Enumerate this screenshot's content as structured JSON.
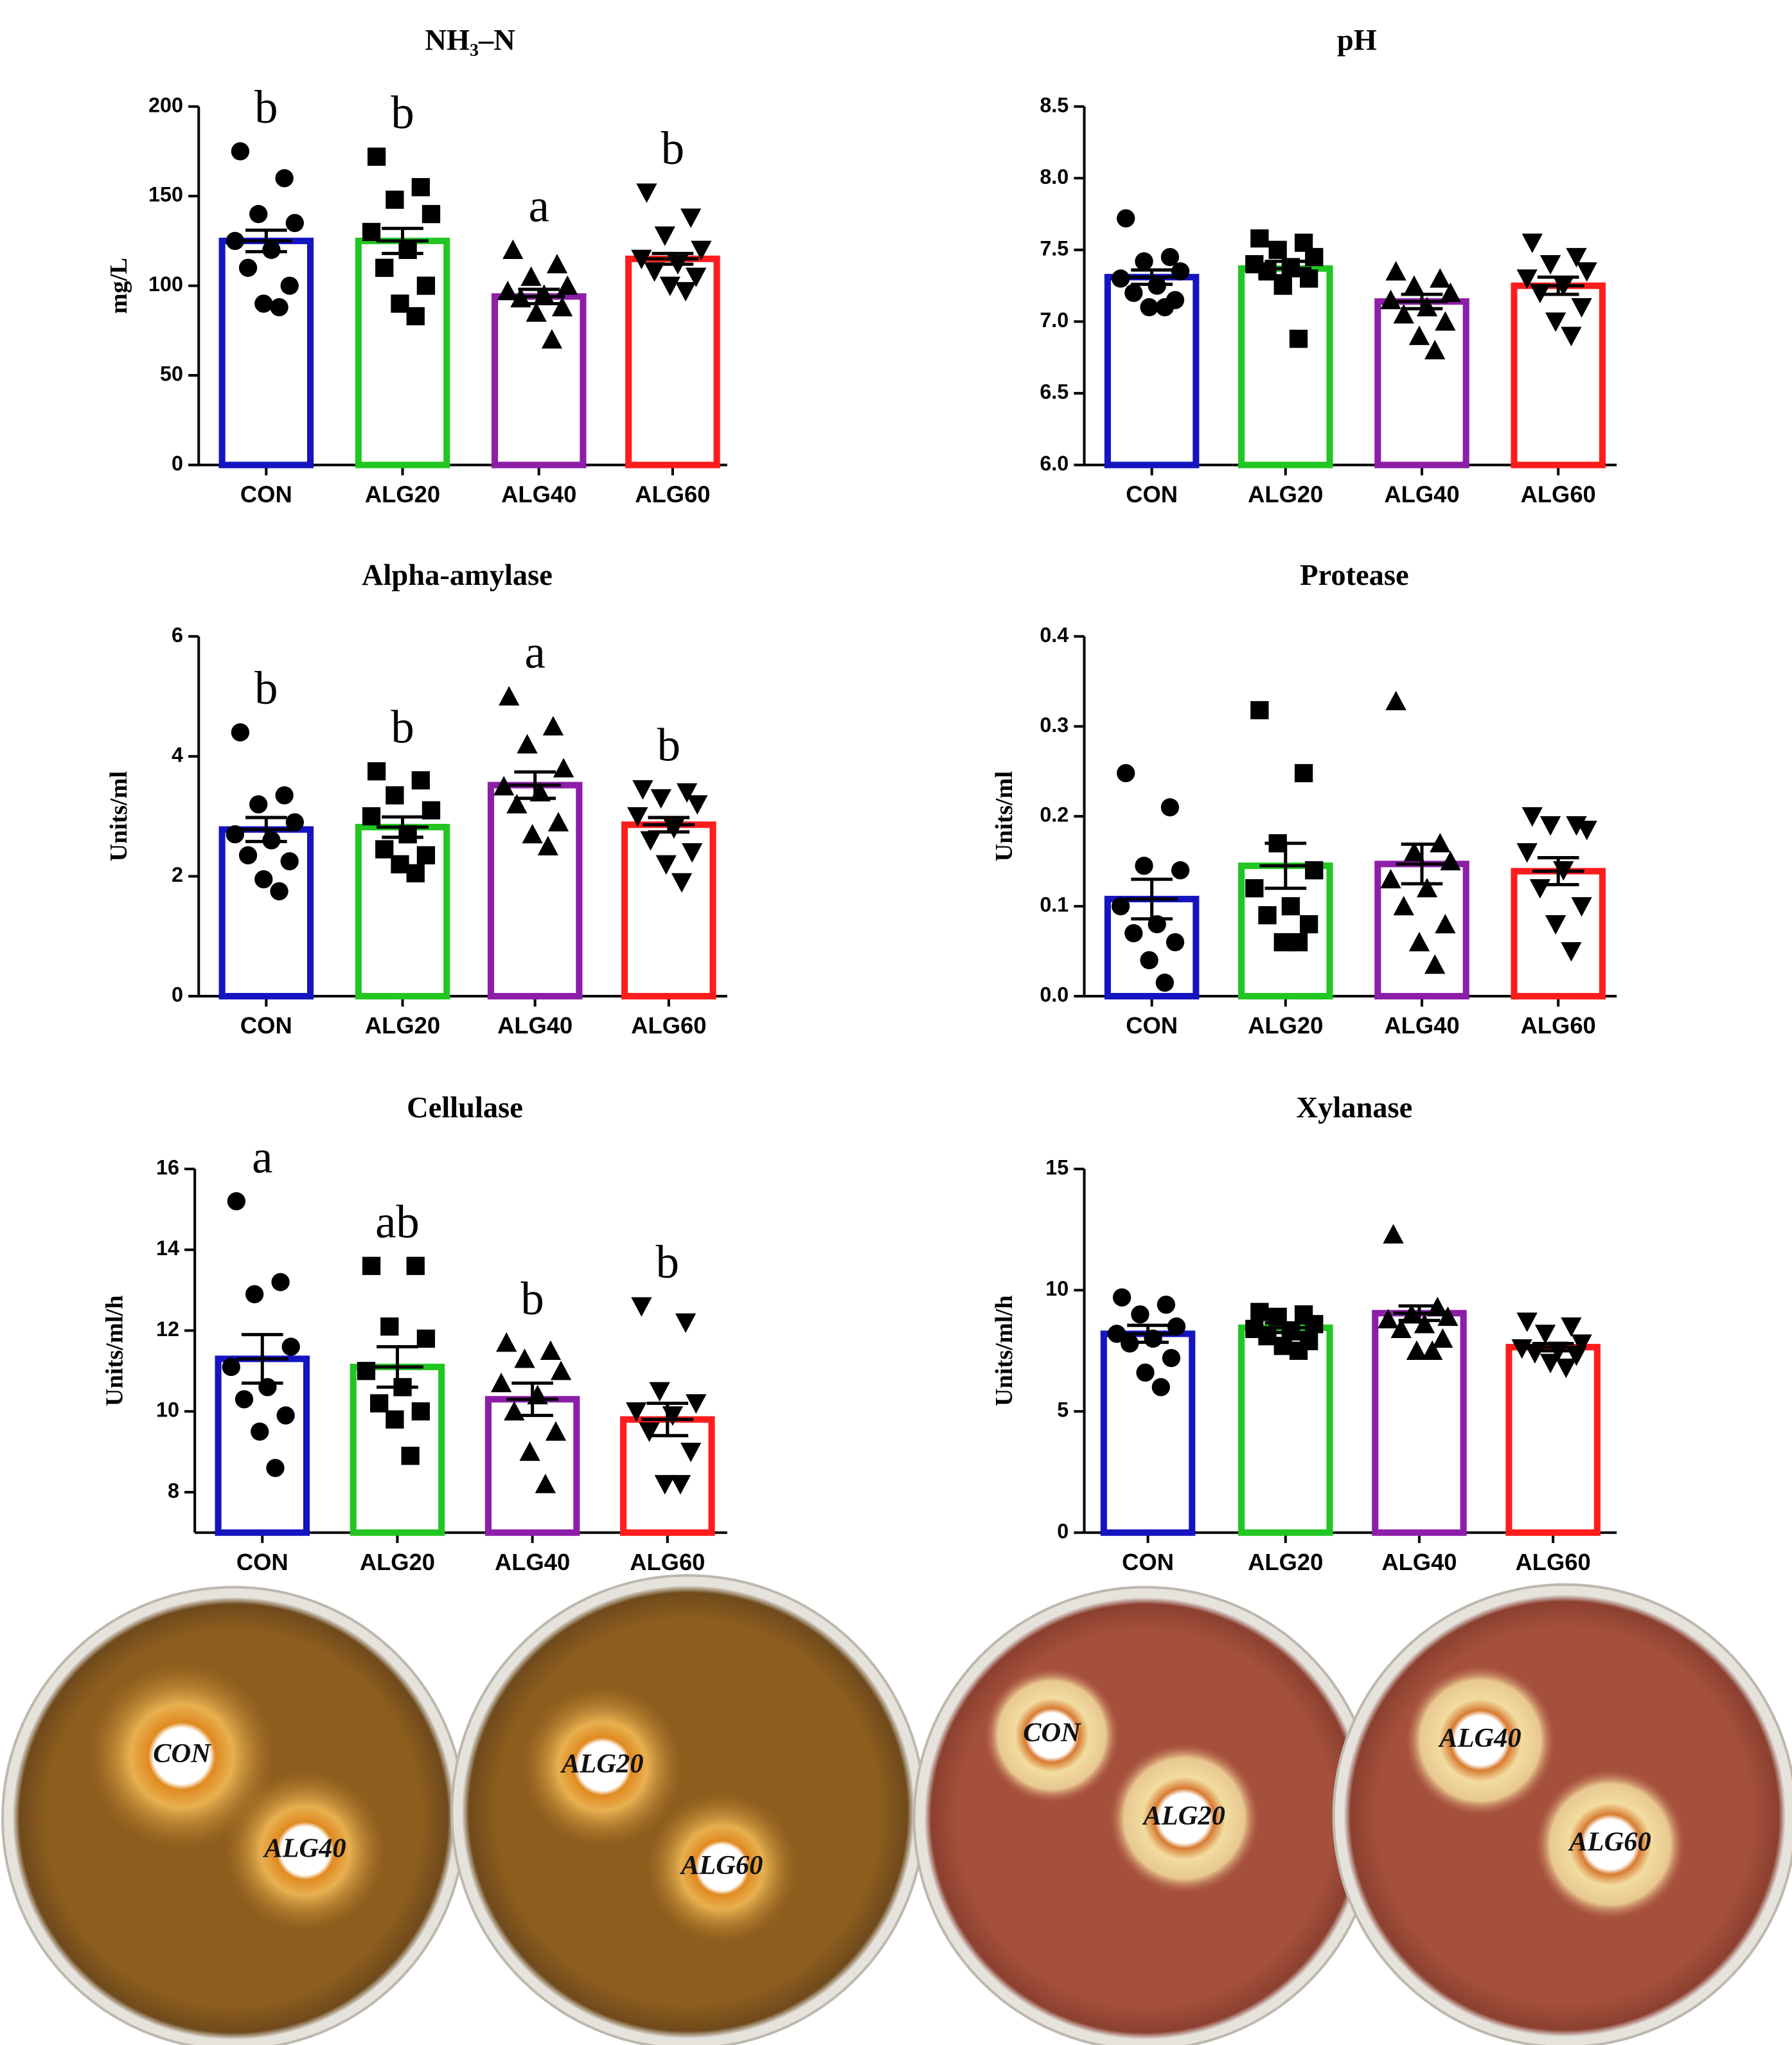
{
  "chart_data": [
    {
      "type": "bar",
      "title": "NH₃–N",
      "ylabel": "mg/L",
      "categories": [
        "CON",
        "ALG20",
        "ALG40",
        "ALG60"
      ],
      "values": [
        125,
        125,
        94,
        115
      ],
      "errors": [
        6,
        7,
        4,
        3
      ],
      "letters": [
        "b",
        "b",
        "a",
        "b"
      ],
      "points": [
        [
          175,
          160,
          140,
          135,
          125,
          120,
          110,
          100,
          90,
          88
        ],
        [
          172,
          155,
          148,
          140,
          130,
          120,
          110,
          100,
          90,
          83
        ],
        [
          120,
          112,
          105,
          100,
          97,
          95,
          93,
          88,
          85,
          70
        ],
        [
          152,
          138,
          128,
          120,
          115,
          112,
          108,
          105,
          100,
          97
        ]
      ],
      "ylim": [
        0,
        200
      ],
      "yticks": [
        0,
        50,
        100,
        150,
        200
      ],
      "colors": [
        "#1414c0",
        "#22c622",
        "#8c1ea8",
        "#ff1c1c"
      ],
      "markers": [
        "circle",
        "square",
        "triangle-up",
        "triangle-down"
      ]
    },
    {
      "type": "bar",
      "title": "pH",
      "categories": [
        "CON",
        "ALG20",
        "ALG40",
        "ALG60"
      ],
      "values": [
        7.31,
        7.37,
        7.14,
        7.25
      ],
      "errors": [
        0.05,
        0.05,
        0.05,
        0.06
      ],
      "points": [
        [
          7.72,
          7.45,
          7.42,
          7.35,
          7.3,
          7.25,
          7.2,
          7.15,
          7.1,
          7.1
        ],
        [
          7.58,
          7.55,
          7.5,
          7.45,
          7.4,
          7.38,
          7.35,
          7.3,
          7.25,
          6.88
        ],
        [
          7.35,
          7.3,
          7.25,
          7.2,
          7.15,
          7.1,
          7.05,
          7.0,
          6.9,
          6.8
        ],
        [
          7.55,
          7.45,
          7.4,
          7.35,
          7.3,
          7.25,
          7.2,
          7.1,
          7.0,
          6.9
        ]
      ],
      "ylim": [
        6,
        8.5
      ],
      "yticks": [
        {
          "value": 6,
          "label": "6.0"
        },
        6.5,
        {
          "value": 7,
          "label": "7.0"
        },
        7.5,
        {
          "value": 8,
          "label": "8.0"
        },
        8.5
      ],
      "colors": [
        "#1414c0",
        "#22c622",
        "#8c1ea8",
        "#ff1c1c"
      ],
      "markers": [
        "circle",
        "square",
        "triangle-up",
        "triangle-down"
      ]
    },
    {
      "type": "bar",
      "title": "Alpha-amylase",
      "ylabel": "Units/ml",
      "categories": [
        "CON",
        "ALG20",
        "ALG40",
        "ALG60"
      ],
      "values": [
        2.78,
        2.82,
        3.52,
        2.86
      ],
      "errors": [
        0.2,
        0.17,
        0.22,
        0.12
      ],
      "letters": [
        "b",
        "b",
        "a",
        "b"
      ],
      "points": [
        [
          4.4,
          3.35,
          3.2,
          2.9,
          2.7,
          2.6,
          2.35,
          2.25,
          1.95,
          1.75
        ],
        [
          3.75,
          3.6,
          3.35,
          3.1,
          3.0,
          2.7,
          2.45,
          2.35,
          2.2,
          2.05
        ],
        [
          5.0,
          4.5,
          4.2,
          3.8,
          3.5,
          3.4,
          3.2,
          2.9,
          2.7,
          2.5
        ],
        [
          3.45,
          3.4,
          3.3,
          3.2,
          3.0,
          2.8,
          2.6,
          2.4,
          2.2,
          1.9
        ]
      ],
      "ylim": [
        0,
        6
      ],
      "yticks": [
        0,
        2,
        4,
        6
      ],
      "colors": [
        "#1414c0",
        "#22c622",
        "#8c1ea8",
        "#ff1c1c"
      ],
      "markers": [
        "circle",
        "square",
        "triangle-up",
        "triangle-down"
      ]
    },
    {
      "type": "bar",
      "title": "Protease",
      "ylabel": "Units/ml",
      "categories": [
        "CON",
        "ALG20",
        "ALG40",
        "ALG60"
      ],
      "values": [
        0.108,
        0.145,
        0.147,
        0.139
      ],
      "errors": [
        0.022,
        0.025,
        0.022,
        0.015
      ],
      "points": [
        [
          0.248,
          0.21,
          0.145,
          0.14,
          0.1,
          0.08,
          0.07,
          0.06,
          0.04,
          0.015
        ],
        [
          0.318,
          0.248,
          0.17,
          0.14,
          0.12,
          0.1,
          0.09,
          0.08,
          0.06,
          0.06
        ],
        [
          0.328,
          0.17,
          0.16,
          0.15,
          0.13,
          0.12,
          0.1,
          0.08,
          0.06,
          0.035
        ],
        [
          0.2,
          0.19,
          0.19,
          0.185,
          0.16,
          0.14,
          0.12,
          0.1,
          0.08,
          0.05
        ]
      ],
      "ylim": [
        0,
        0.4
      ],
      "yticks": [
        {
          "value": 0,
          "label": "0.0"
        },
        0.1,
        0.2,
        0.3,
        0.4
      ],
      "colors": [
        "#1414c0",
        "#22c622",
        "#8c1ea8",
        "#ff1c1c"
      ],
      "markers": [
        "circle",
        "square",
        "triangle-up",
        "triangle-down"
      ]
    },
    {
      "type": "bar",
      "title": "Cellulase",
      "ylabel": "Units/ml/h",
      "categories": [
        "CON",
        "ALG20",
        "ALG40",
        "ALG60"
      ],
      "values": [
        11.3,
        11.1,
        10.3,
        9.8
      ],
      "errors": [
        0.6,
        0.5,
        0.4,
        0.4
      ],
      "letters": [
        "a",
        "ab",
        "b",
        "b"
      ],
      "points": [
        [
          15.2,
          13.2,
          12.9,
          11.6,
          11.1,
          10.6,
          10.3,
          9.9,
          9.5,
          8.6
        ],
        [
          13.6,
          13.6,
          12.1,
          11.8,
          11.0,
          10.6,
          10.2,
          10.0,
          9.8,
          8.9
        ],
        [
          11.7,
          11.5,
          11.3,
          11.0,
          10.7,
          10.4,
          10.0,
          9.5,
          9.0,
          8.2
        ],
        [
          12.6,
          12.2,
          10.5,
          10.2,
          10.0,
          9.9,
          9.5,
          9.0,
          8.2,
          8.2
        ]
      ],
      "ylim": [
        7,
        16
      ],
      "yticks": [
        8,
        10,
        12,
        14,
        16
      ],
      "colors": [
        "#1414c0",
        "#22c622",
        "#8c1ea8",
        "#ff1c1c"
      ],
      "markers": [
        "circle",
        "square",
        "triangle-up",
        "triangle-down"
      ]
    },
    {
      "type": "bar",
      "title": "Xylanase",
      "ylabel": "Units/ml/h",
      "categories": [
        "CON",
        "ALG20",
        "ALG40",
        "ALG60"
      ],
      "values": [
        8.2,
        8.45,
        9.05,
        7.65
      ],
      "errors": [
        0.35,
        0.2,
        0.3,
        0.15
      ],
      "points": [
        [
          9.7,
          9.4,
          9.0,
          8.5,
          8.2,
          8.0,
          7.8,
          7.2,
          6.6,
          6.0
        ],
        [
          9.1,
          9.0,
          8.9,
          8.6,
          8.4,
          8.3,
          8.1,
          7.9,
          7.7,
          7.5
        ],
        [
          12.3,
          9.3,
          9.0,
          8.9,
          8.8,
          8.6,
          8.4,
          8.0,
          7.5,
          7.5
        ],
        [
          8.7,
          8.5,
          8.2,
          7.8,
          7.6,
          7.5,
          7.4,
          7.3,
          7.0,
          6.8
        ]
      ],
      "ylim": [
        0,
        15
      ],
      "yticks": [
        0,
        5,
        10,
        15
      ],
      "colors": [
        "#1414c0",
        "#22c622",
        "#8c1ea8",
        "#ff1c1c"
      ],
      "markers": [
        "circle",
        "square",
        "triangle-up",
        "triangle-down"
      ]
    }
  ],
  "plates": [
    {
      "labels": [
        "CON",
        "ALG40"
      ]
    },
    {
      "labels": [
        "ALG20",
        "ALG60"
      ]
    },
    {
      "labels": [
        "CON",
        "ALG20"
      ]
    },
    {
      "labels": [
        "ALG40",
        "ALG60"
      ]
    }
  ]
}
